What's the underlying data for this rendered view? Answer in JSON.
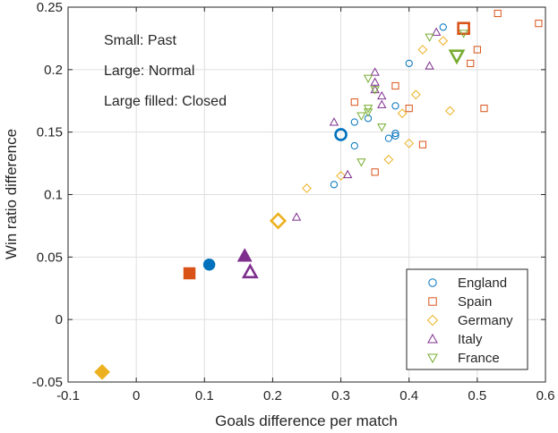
{
  "chart_data": {
    "type": "scatter",
    "title": "",
    "xlabel": "Goals difference per match",
    "ylabel": "Win ratio difference",
    "xlim": [
      -0.1,
      0.6
    ],
    "ylim": [
      -0.05,
      0.25
    ],
    "xticks": [
      -0.1,
      0,
      0.1,
      0.2,
      0.3,
      0.4,
      0.5,
      0.6
    ],
    "xtick_labels": [
      "-0.1",
      "0",
      "0.1",
      "0.2",
      "0.3",
      "0.4",
      "0.5",
      "0.6"
    ],
    "yticks": [
      -0.05,
      0,
      0.05,
      0.1,
      0.15,
      0.2,
      0.25
    ],
    "ytick_labels": [
      "-0.05",
      "0",
      "0.05",
      "0.1",
      "0.15",
      "0.2",
      "0.25"
    ],
    "grid": true,
    "legend_position": "bottom-right",
    "annotations": [
      "Small: Past",
      "Large: Normal",
      "Large filled: Closed"
    ],
    "series": [
      {
        "name": "England",
        "marker": "circle",
        "color": "#0072BD",
        "past": [
          [
            0.29,
            0.108
          ],
          [
            0.32,
            0.139
          ],
          [
            0.32,
            0.158
          ],
          [
            0.34,
            0.161
          ],
          [
            0.37,
            0.145
          ],
          [
            0.38,
            0.147
          ],
          [
            0.38,
            0.149
          ],
          [
            0.38,
            0.171
          ],
          [
            0.4,
            0.205
          ],
          [
            0.45,
            0.234
          ]
        ],
        "normal": [
          [
            0.3,
            0.148
          ]
        ],
        "closed": [
          [
            0.107,
            0.044
          ]
        ]
      },
      {
        "name": "Spain",
        "marker": "square",
        "color": "#D95319",
        "past": [
          [
            0.32,
            0.174
          ],
          [
            0.35,
            0.118
          ],
          [
            0.38,
            0.187
          ],
          [
            0.4,
            0.169
          ],
          [
            0.42,
            0.14
          ],
          [
            0.49,
            0.205
          ],
          [
            0.5,
            0.216
          ],
          [
            0.51,
            0.169
          ],
          [
            0.53,
            0.245
          ],
          [
            0.59,
            0.237
          ]
        ],
        "normal": [
          [
            0.48,
            0.233
          ]
        ],
        "closed": [
          [
            0.078,
            0.037
          ]
        ]
      },
      {
        "name": "Germany",
        "marker": "diamond",
        "color": "#EDB120",
        "past": [
          [
            0.25,
            0.105
          ],
          [
            0.3,
            0.115
          ],
          [
            0.37,
            0.128
          ],
          [
            0.39,
            0.165
          ],
          [
            0.4,
            0.141
          ],
          [
            0.41,
            0.18
          ],
          [
            0.42,
            0.216
          ],
          [
            0.45,
            0.223
          ],
          [
            0.46,
            0.167
          ]
        ],
        "normal": [
          [
            0.208,
            0.079
          ]
        ],
        "closed": [
          [
            -0.05,
            -0.042
          ]
        ]
      },
      {
        "name": "Italy",
        "marker": "triangle-up",
        "color": "#7E2F8E",
        "past": [
          [
            0.235,
            0.082
          ],
          [
            0.29,
            0.158
          ],
          [
            0.31,
            0.116
          ],
          [
            0.35,
            0.19
          ],
          [
            0.35,
            0.198
          ],
          [
            0.35,
            0.184
          ],
          [
            0.36,
            0.172
          ],
          [
            0.36,
            0.179
          ],
          [
            0.43,
            0.203
          ],
          [
            0.44,
            0.23
          ]
        ],
        "normal": [
          [
            0.167,
            0.038
          ]
        ],
        "closed": [
          [
            0.159,
            0.051
          ]
        ]
      },
      {
        "name": "France",
        "marker": "triangle-down",
        "color": "#77AC30",
        "past": [
          [
            0.33,
            0.126
          ],
          [
            0.33,
            0.163
          ],
          [
            0.34,
            0.166
          ],
          [
            0.34,
            0.169
          ],
          [
            0.34,
            0.193
          ],
          [
            0.35,
            0.184
          ],
          [
            0.36,
            0.154
          ],
          [
            0.43,
            0.226
          ],
          [
            0.48,
            0.229
          ]
        ],
        "normal": [
          [
            0.47,
            0.211
          ]
        ],
        "closed": []
      }
    ]
  }
}
